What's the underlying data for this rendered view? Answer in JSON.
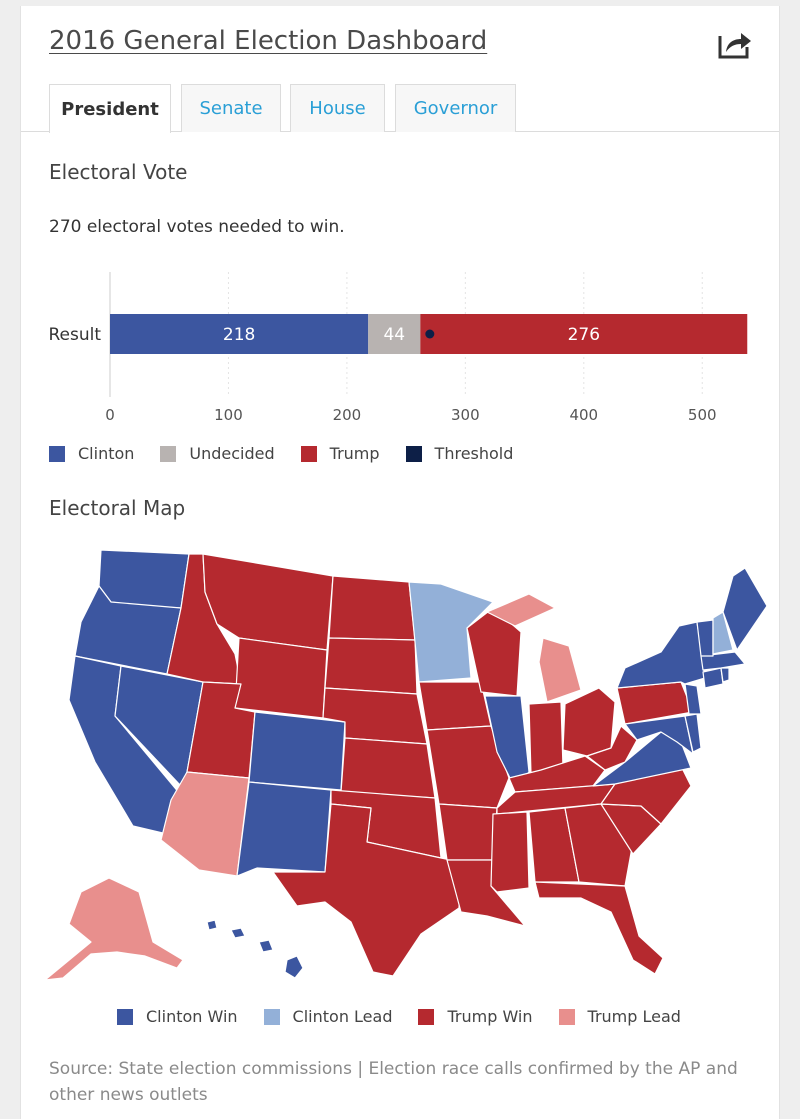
{
  "header": {
    "title": "2016 General Election Dashboard",
    "share_icon": "share-icon"
  },
  "tabs": [
    {
      "label": "President",
      "active": true
    },
    {
      "label": "Senate",
      "active": false
    },
    {
      "label": "House",
      "active": false
    },
    {
      "label": "Governor",
      "active": false
    }
  ],
  "electoral_vote": {
    "heading": "Electoral Vote",
    "subtitle": "270 electoral votes needed to win."
  },
  "chart_data": {
    "type": "bar",
    "orientation": "horizontal",
    "stacked": true,
    "categories": [
      "Result"
    ],
    "series": [
      {
        "name": "Clinton",
        "values": [
          218
        ],
        "color": "#3c56a0"
      },
      {
        "name": "Undecided",
        "values": [
          44
        ],
        "color": "#b8b3b1"
      },
      {
        "name": "Trump",
        "values": [
          276
        ],
        "color": "#b5292f"
      }
    ],
    "threshold": {
      "name": "Threshold",
      "value": 270,
      "color": "#0d1f47"
    },
    "xlim": [
      0,
      538
    ],
    "xticks": [
      0,
      100,
      200,
      300,
      400,
      500
    ],
    "grid": true,
    "legend": [
      "Clinton",
      "Undecided",
      "Trump",
      "Threshold"
    ],
    "legend_position": "bottom-left"
  },
  "electoral_map": {
    "heading": "Electoral Map",
    "legend": [
      {
        "label": "Clinton Win",
        "color": "#3c56a0"
      },
      {
        "label": "Clinton Lead",
        "color": "#93b0d8"
      },
      {
        "label": "Trump Win",
        "color": "#b5292f"
      },
      {
        "label": "Trump Lead",
        "color": "#e88f8d"
      }
    ]
  },
  "source": "Source: State election commissions | Election race calls confirmed by the AP and other news outlets"
}
